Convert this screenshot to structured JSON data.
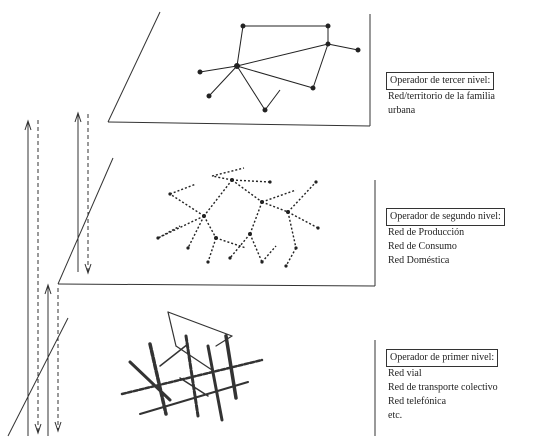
{
  "levels": [
    {
      "id": "third",
      "heading": "Operador de tercer nivel:",
      "description": "Red/territorio de la familia urbana"
    },
    {
      "id": "second",
      "heading": "Operador de segundo nivel:",
      "items": [
        "Red de Producción",
        "Red de Consumo",
        "Red Doméstica"
      ]
    },
    {
      "id": "first",
      "heading": "Operador de primer nivel:",
      "items": [
        "Red vial",
        "Red de transporte colectivo",
        "Red telefónica",
        "etc."
      ]
    }
  ]
}
